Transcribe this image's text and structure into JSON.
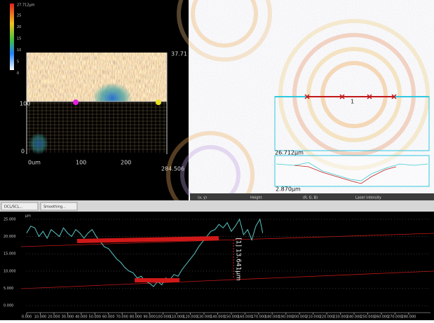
{
  "height_map": {
    "scale_max": "27.712µm",
    "scale_ticks": [
      "25",
      "20",
      "15",
      "10",
      "5",
      "0"
    ],
    "y_labels": [
      "100",
      "0"
    ],
    "x_labels": [
      "0um",
      "100",
      "200",
      "284.506"
    ],
    "z_label": "37.71"
  },
  "image_view": {
    "profile_marker": "1",
    "width_label": "26.712µm",
    "depth_label": "2.870µm",
    "status_fields": [
      "(x, y)",
      "Height",
      "(R, G, B)",
      "Laser intensity"
    ]
  },
  "tabs": [
    "DCL/SCL...",
    "Smoothing..."
  ],
  "chart_data": {
    "type": "line",
    "y_unit": "µm",
    "annotation": "[1] 13.641µm",
    "x": [
      0,
      3,
      6,
      9,
      12,
      15,
      18,
      21,
      24,
      27,
      30,
      33,
      36,
      39,
      42,
      45,
      48,
      51,
      54,
      57,
      60,
      63,
      66,
      69,
      72,
      75,
      78,
      81,
      84,
      87,
      90,
      93,
      96,
      99,
      102,
      105,
      108,
      111,
      114,
      117,
      120,
      123,
      126,
      129,
      132,
      135,
      138,
      141,
      144,
      147,
      150,
      153,
      156,
      159,
      162,
      165,
      168,
      171,
      173
    ],
    "series": [
      {
        "color": "#5cc6c6",
        "values": [
          21,
          23,
          22.5,
          20,
          21.5,
          19.5,
          22,
          21,
          20,
          22.5,
          21,
          20,
          22,
          21,
          19.5,
          21,
          22,
          20,
          18.5,
          17,
          16.5,
          15,
          13.5,
          12.5,
          11,
          10,
          9.5,
          8,
          8.5,
          7,
          6.5,
          5.5,
          7,
          6,
          8,
          7.5,
          9,
          8.5,
          10.5,
          12,
          13.5,
          15,
          17,
          18.5,
          20,
          21.5,
          22,
          23.5,
          22.5,
          24,
          21.5,
          23,
          25,
          20.5,
          22,
          19,
          23,
          25,
          21
        ]
      }
    ],
    "xlim": [
      0,
      296
    ],
    "ylim": [
      -3,
      27
    ],
    "xticks": [
      {
        "value": 0,
        "label": "0.000"
      },
      {
        "value": 10,
        "label": "10.000"
      },
      {
        "value": 20,
        "label": "20.000"
      },
      {
        "value": 30,
        "label": "30.000"
      },
      {
        "value": 40,
        "label": "40.000"
      },
      {
        "value": 50,
        "label": "50.000"
      },
      {
        "value": 60,
        "label": "60.000"
      },
      {
        "value": 70,
        "label": "70.000"
      },
      {
        "value": 80,
        "label": "80.000"
      },
      {
        "value": 90,
        "label": "90.000"
      },
      {
        "value": 100,
        "label": "100.000"
      },
      {
        "value": 110,
        "label": "110.000"
      },
      {
        "value": 120,
        "label": "120.000"
      },
      {
        "value": 130,
        "label": "130.000"
      },
      {
        "value": 140,
        "label": "140.000"
      },
      {
        "value": 150,
        "label": "150.000"
      },
      {
        "value": 160,
        "label": "160.000"
      },
      {
        "value": 170,
        "label": "170.000"
      },
      {
        "value": 180,
        "label": "180.000"
      },
      {
        "value": 190,
        "label": "190.000"
      },
      {
        "value": 200,
        "label": "200.000"
      },
      {
        "value": 210,
        "label": "210.000"
      },
      {
        "value": 220,
        "label": "220.000"
      },
      {
        "value": 230,
        "label": "230.000"
      },
      {
        "value": 240,
        "label": "240.000"
      },
      {
        "value": 250,
        "label": "250.000"
      },
      {
        "value": 260,
        "label": "260.000"
      },
      {
        "value": 270,
        "label": "270.000"
      },
      {
        "value": 280,
        "label": "280.000"
      }
    ],
    "yticks": [
      {
        "value": 0,
        "label": "0.000"
      },
      {
        "value": 5,
        "label": "5.000"
      },
      {
        "value": 10,
        "label": "10.000"
      },
      {
        "value": 15,
        "label": "15.000"
      },
      {
        "value": 20,
        "label": "20.000"
      },
      {
        "value": 25,
        "label": "25.000"
      }
    ]
  }
}
